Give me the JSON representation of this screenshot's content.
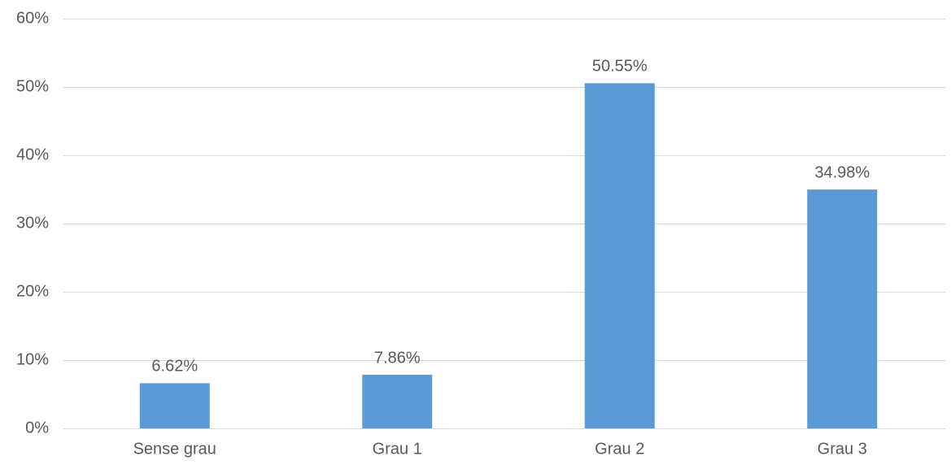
{
  "chart_data": {
    "type": "bar",
    "categories": [
      "Sense grau",
      "Grau 1",
      "Grau 2",
      "Grau 3"
    ],
    "values": [
      6.62,
      7.86,
      50.55,
      34.98
    ],
    "value_labels": [
      "6.62%",
      "7.86%",
      "50.55%",
      "34.98%"
    ],
    "color": "#5b9bd5",
    "ylim": [
      0,
      60
    ],
    "yticks": [
      {
        "value": 0,
        "label": "0%"
      },
      {
        "value": 10,
        "label": "10%"
      },
      {
        "value": 20,
        "label": "20%"
      },
      {
        "value": 30,
        "label": "30%"
      },
      {
        "value": 40,
        "label": "40%"
      },
      {
        "value": 50,
        "label": "50%"
      },
      {
        "value": 60,
        "label": "60%"
      }
    ],
    "grid": true
  }
}
